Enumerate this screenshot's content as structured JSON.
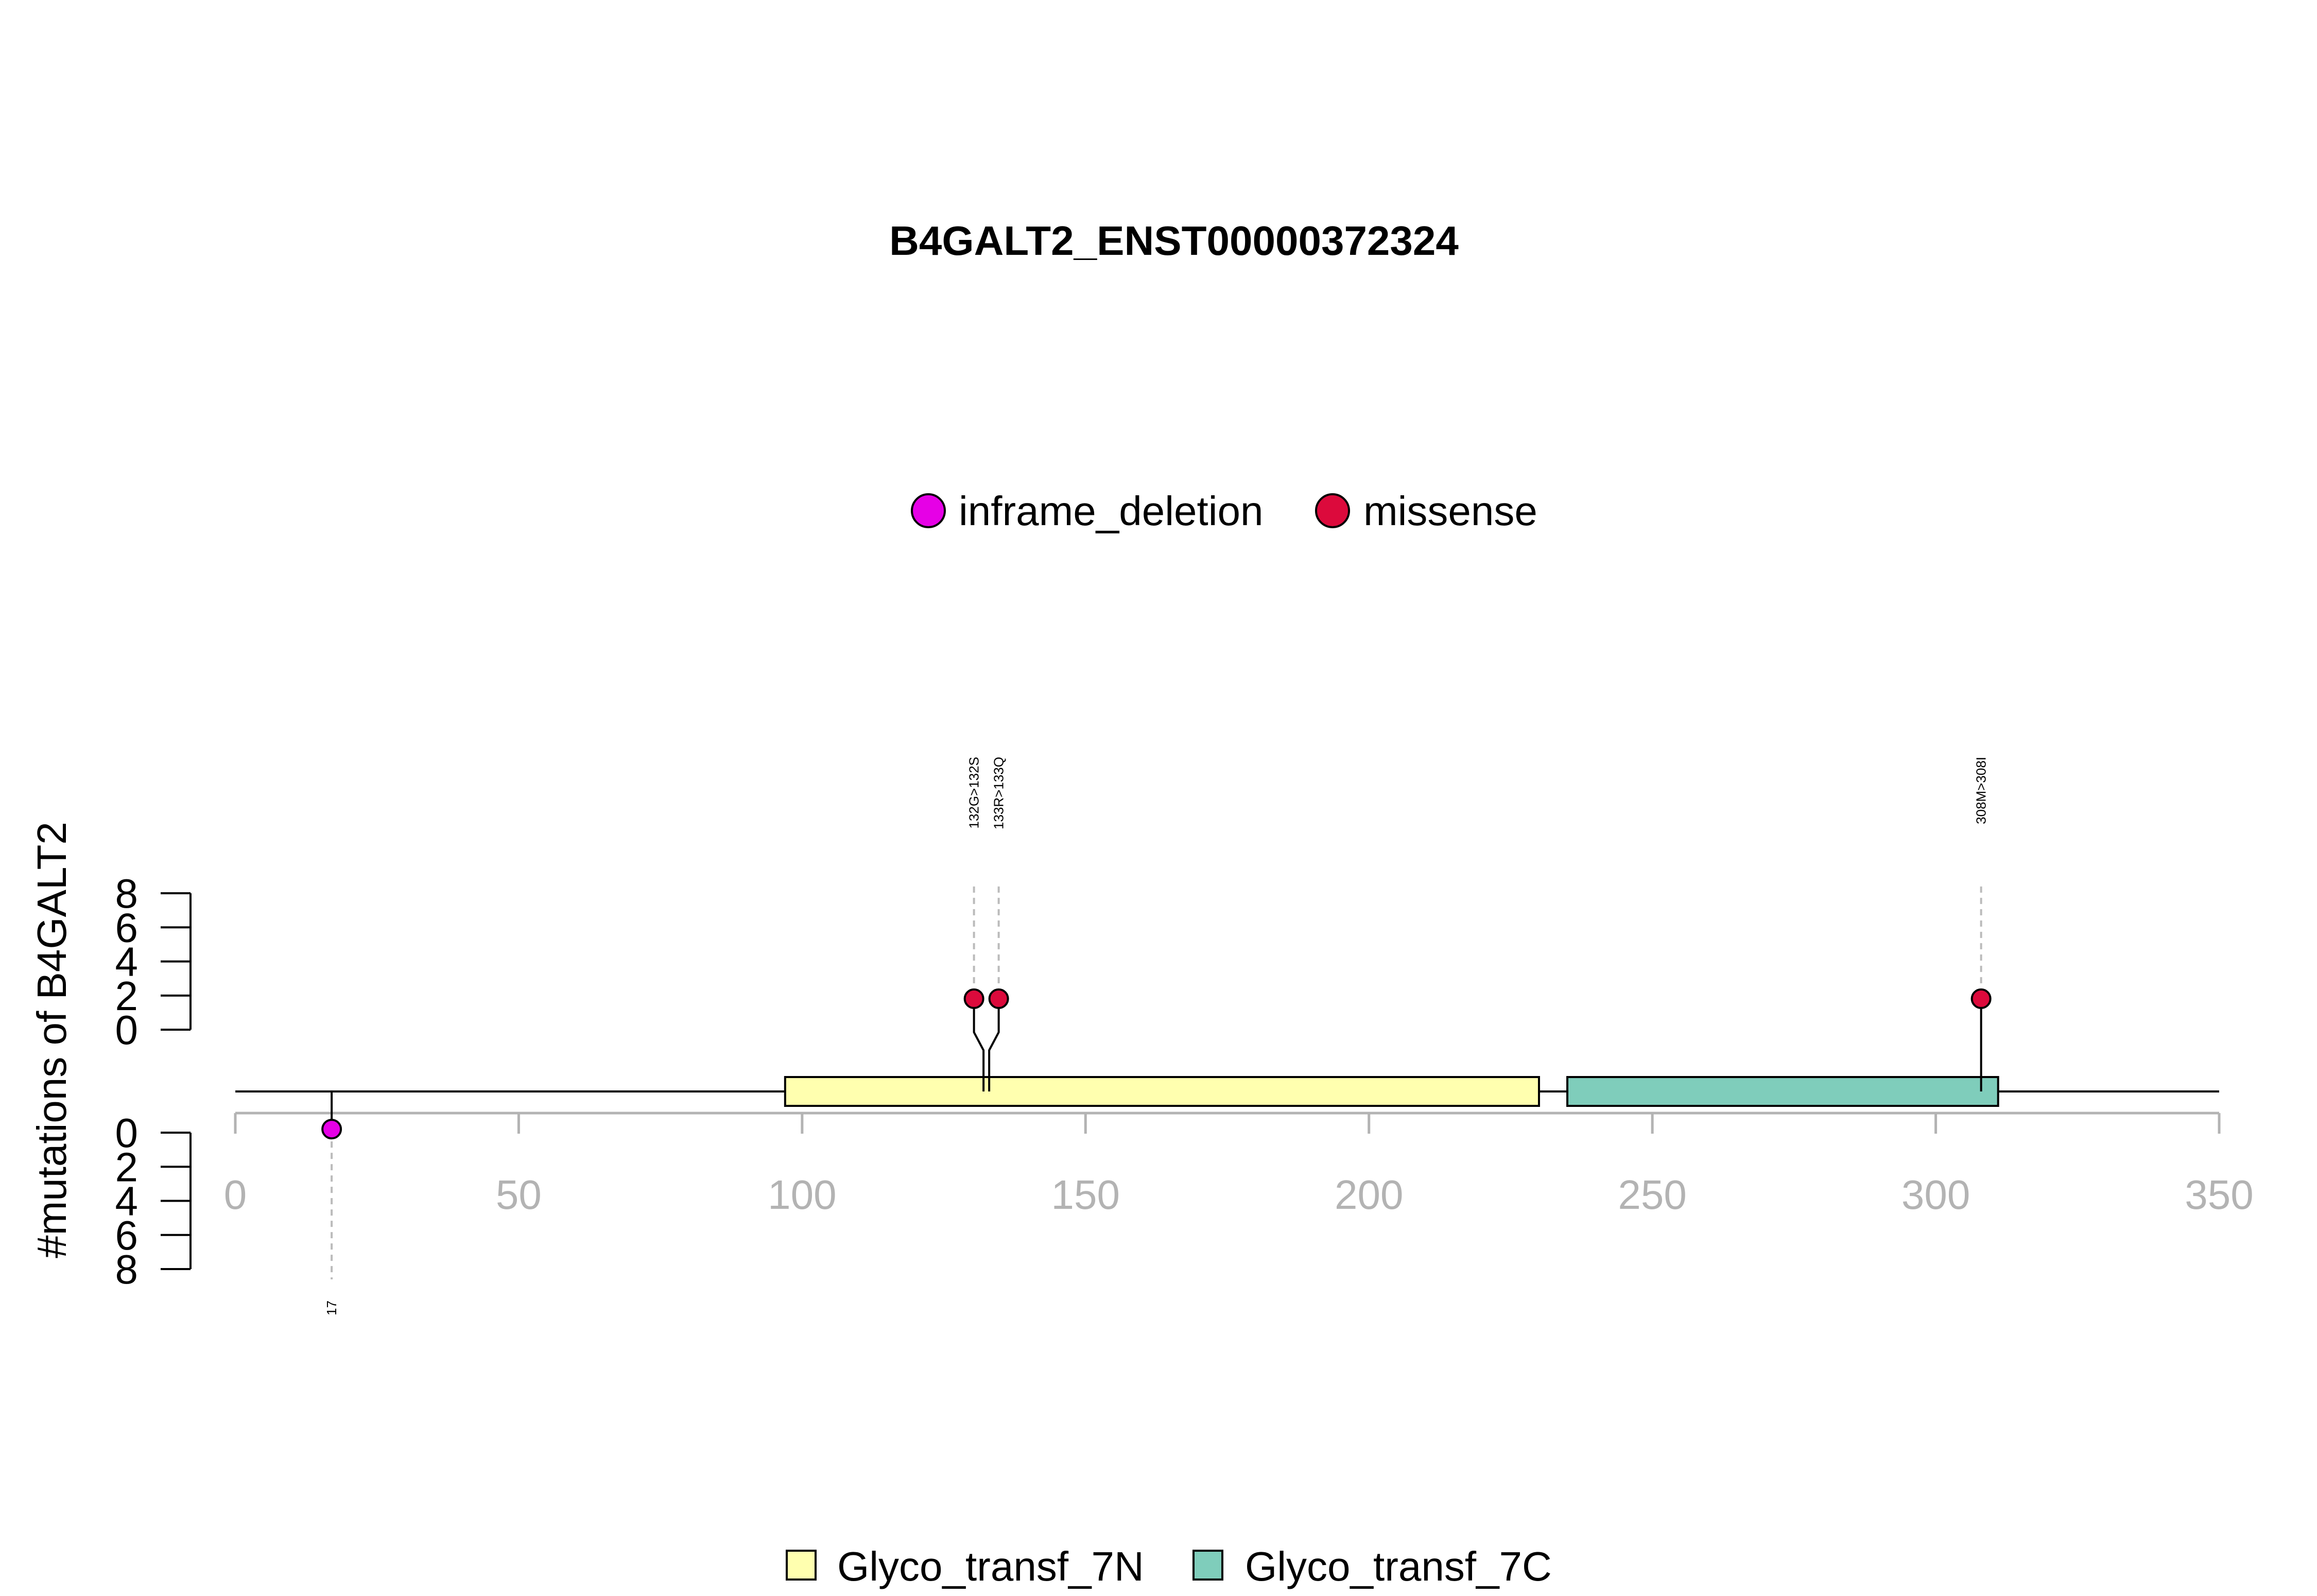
{
  "chart_data": {
    "type": "lollipop",
    "title": "B4GALT2_ENST00000372324",
    "ylabel": "#mutations of B4GALT2",
    "xlim": [
      0,
      350
    ],
    "x_ticks": [
      0,
      50,
      100,
      150,
      200,
      250,
      300,
      350
    ],
    "ylim": [
      0,
      8
    ],
    "y_ticks": [
      0,
      2,
      4,
      6,
      8
    ],
    "protein_length": 350,
    "mutation_legend": [
      {
        "name": "inframe_deletion",
        "color": "#E600E6"
      },
      {
        "name": "missense",
        "color": "#DC0A3C"
      }
    ],
    "domain_legend": [
      {
        "name": "Glyco_transf_7N",
        "color": "#FFFFAF"
      },
      {
        "name": "Glyco_transf_7C",
        "color": "#7FCDBB"
      }
    ],
    "domains": [
      {
        "name": "Glyco_transf_7N",
        "start": 97,
        "end": 230
      },
      {
        "name": "Glyco_transf_7C",
        "start": 235,
        "end": 311
      }
    ],
    "mutations_top": [
      {
        "label": "132G>132S",
        "position": 132,
        "count": 1,
        "type": "missense"
      },
      {
        "label": "133R>133Q",
        "position": 133,
        "count": 1,
        "type": "missense"
      },
      {
        "label": "308M>308I",
        "position": 308,
        "count": 1,
        "type": "missense"
      }
    ],
    "mutations_bottom": [
      {
        "label": "17",
        "position": 17,
        "count": 1,
        "type": "inframe_deletion"
      }
    ]
  }
}
